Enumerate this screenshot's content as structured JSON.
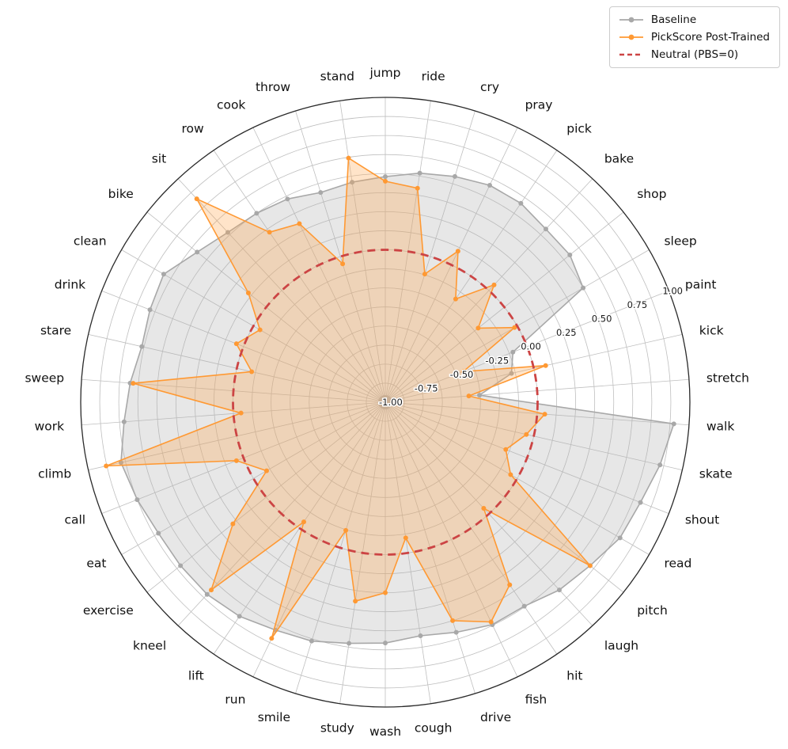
{
  "legend": {
    "baseline": "Baseline",
    "pickscore": "PickScore Post-Trained",
    "neutral": "Neutral (PBS=0)"
  },
  "chart_data": {
    "type": "radar",
    "start": "top",
    "direction": "clockwise",
    "r_range": [
      -1,
      1
    ],
    "grid_step": 0.125,
    "grid_color": "#bfbfbf",
    "outer_circle_color": "#2a2a2a",
    "r_ticks": [
      -1.0,
      -0.75,
      -0.5,
      -0.25,
      0.0,
      0.25,
      0.5,
      0.75,
      1.0
    ],
    "r_tick_labels": [
      "-1.00",
      "-0.75",
      "-0.50",
      "-0.25",
      "0.00",
      "0.25",
      "0.50",
      "0.75",
      "1.00"
    ],
    "tick_label_angle_index": 8,
    "categories": [
      "jump",
      "ride",
      "cry",
      "pray",
      "pick",
      "bake",
      "shop",
      "sleep",
      "paint",
      "kick",
      "stretch",
      "walk",
      "skate",
      "shout",
      "read",
      "pitch",
      "laugh",
      "hit",
      "fish",
      "drive",
      "cough",
      "wash",
      "study",
      "smile",
      "run",
      "lift",
      "kneel",
      "exercise",
      "eat",
      "call",
      "climb",
      "work",
      "sweep",
      "stare",
      "drink",
      "clean",
      "bike",
      "sit",
      "row",
      "cook",
      "throw",
      "stand"
    ],
    "series": [
      {
        "name": "Baseline",
        "color": "#a8a8a8",
        "fill": "rgba(175,175,175,0.30)",
        "values": [
          0.48,
          0.52,
          0.55,
          0.58,
          0.58,
          0.55,
          0.55,
          0.5,
          -0.1,
          -0.15,
          -0.38,
          0.9,
          0.85,
          0.8,
          0.78,
          0.72,
          0.68,
          0.62,
          0.62,
          0.58,
          0.55,
          0.58,
          0.6,
          0.64,
          0.66,
          0.7,
          0.72,
          0.72,
          0.72,
          0.75,
          0.78,
          0.72,
          0.68,
          0.64,
          0.66,
          0.68,
          0.58,
          0.52,
          0.5,
          0.48,
          0.44,
          0.46
        ]
      },
      {
        "name": "PickScore Post-Trained",
        "color": "#ff9933",
        "fill": "rgba(255,166,77,0.30)",
        "values": [
          0.45,
          0.42,
          -0.12,
          0.1,
          -0.18,
          0.05,
          -0.22,
          -0.02,
          -0.45,
          0.08,
          -0.45,
          0.05,
          -0.05,
          -0.15,
          -0.05,
          0.72,
          -0.05,
          0.45,
          0.6,
          0.5,
          -0.1,
          0.25,
          0.32,
          -0.12,
          0.72,
          -0.05,
          0.68,
          0.28,
          -0.1,
          0.05,
          0.88,
          -0.05,
          0.66,
          -0.1,
          0.05,
          -0.05,
          0.15,
          0.82,
          0.35,
          0.3,
          -0.05,
          0.62
        ]
      }
    ],
    "neutral": {
      "label": "Neutral (PBS=0)",
      "value": 0,
      "color": "#cc4444"
    }
  }
}
